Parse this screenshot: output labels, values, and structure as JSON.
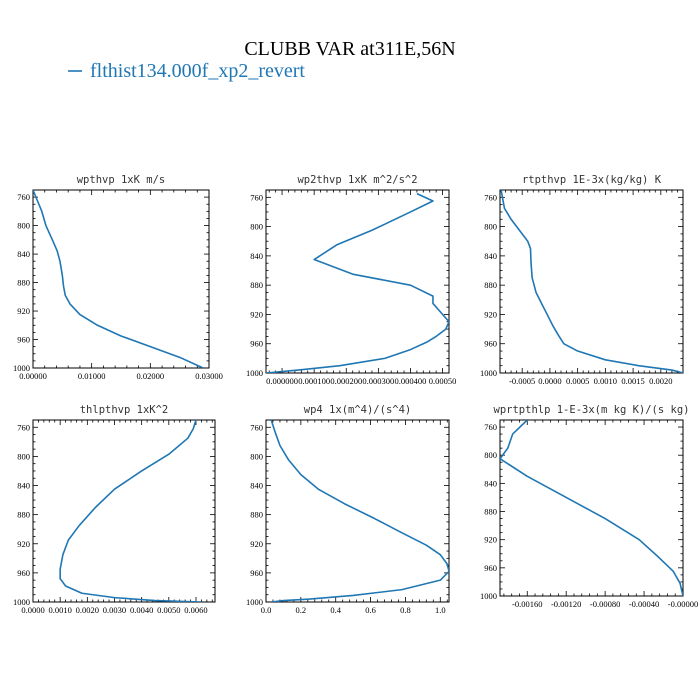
{
  "figure": {
    "title": "CLUBB VAR at311E,56N",
    "legend_label": "flthist134.000f_xp2_revert",
    "line_color": "#1f77b4"
  },
  "chart_data": [
    {
      "type": "line",
      "title": "wpthvp  1xK m/s",
      "xlim": [
        0,
        0.03
      ],
      "ylim": [
        1000,
        750
      ],
      "xticks": [
        0,
        0.01,
        0.02,
        0.03
      ],
      "xtick_labels": [
        "0.00000",
        "0.01000",
        "0.02000",
        "0.03000"
      ],
      "yticks": [
        760,
        800,
        840,
        880,
        920,
        960,
        1000
      ],
      "series": [
        {
          "x": [
            0.0,
            0.0005,
            0.0015,
            0.0022,
            0.0033,
            0.0041,
            0.0046,
            0.005,
            0.0052,
            0.0055,
            0.0063,
            0.008,
            0.011,
            0.015,
            0.02,
            0.025,
            0.029
          ],
          "y": [
            750,
            760,
            780,
            800,
            820,
            835,
            850,
            870,
            885,
            898,
            910,
            925,
            940,
            955,
            970,
            985,
            1000
          ]
        }
      ]
    },
    {
      "type": "line",
      "title": "wp2thvp  1xK m^2/s^2",
      "xlim": [
        -5e-05,
        0.00052
      ],
      "ylim": [
        1000,
        750
      ],
      "xticks": [
        0,
        0.0001,
        0.0002,
        0.0003,
        0.0004,
        0.0005
      ],
      "xtick_labels": [
        "0.000000",
        "0.000100",
        "0.000200",
        "0.000300",
        "0.000400",
        "0.00050"
      ],
      "yticks": [
        760,
        800,
        840,
        880,
        920,
        960,
        1000
      ],
      "series": [
        {
          "x": [
            0.00042,
            0.00047,
            0.0004,
            0.00028,
            0.00017,
            0.0001,
            0.00022,
            0.0004,
            0.00047,
            0.00047,
            0.00049,
            0.00052,
            0.00051,
            0.00048,
            0.00045,
            0.0004,
            0.00032,
            0.00018,
            5e-05,
            -5e-05
          ],
          "y": [
            755,
            765,
            780,
            805,
            825,
            845,
            865,
            880,
            895,
            905,
            915,
            930,
            940,
            950,
            958,
            968,
            980,
            990,
            996,
            1000
          ]
        }
      ]
    },
    {
      "type": "line",
      "title": "rtpthvp  1E-3x(kg/kg) K",
      "xlim": [
        -0.0009,
        0.0024
      ],
      "ylim": [
        1000,
        750
      ],
      "xticks": [
        -0.0005,
        0,
        0.0005,
        0.001,
        0.0015,
        0.002
      ],
      "xtick_labels": [
        "-0.0005",
        "0.0000",
        "0.0005",
        "0.0010",
        "0.0015",
        "0.0020"
      ],
      "yticks": [
        760,
        800,
        840,
        880,
        920,
        960,
        1000
      ],
      "series": [
        {
          "x": [
            -0.00088,
            -0.00082,
            -0.0007,
            -0.00055,
            -0.0004,
            -0.00035,
            -0.00034,
            -0.00032,
            -0.00025,
            -0.00015,
            -5e-05,
            5e-05,
            0.00015,
            0.00025,
            0.0005,
            0.001,
            0.0016,
            0.0022,
            0.0024
          ],
          "y": [
            750,
            775,
            790,
            805,
            820,
            830,
            850,
            870,
            890,
            905,
            920,
            935,
            948,
            960,
            970,
            982,
            990,
            996,
            1000
          ]
        }
      ]
    },
    {
      "type": "line",
      "title": "thlpthvp  1xK^2",
      "xlim": [
        0,
        0.0067
      ],
      "ylim": [
        1000,
        750
      ],
      "xticks": [
        0,
        0.001,
        0.002,
        0.003,
        0.004,
        0.005,
        0.006
      ],
      "xtick_labels": [
        "0.0000",
        "0.0010",
        "0.0020",
        "0.0030",
        "0.0040",
        "0.0050",
        "0.0060"
      ],
      "yticks": [
        760,
        800,
        840,
        880,
        920,
        960,
        1000
      ],
      "series": [
        {
          "x": [
            0.006,
            0.0059,
            0.0057,
            0.005,
            0.004,
            0.003,
            0.0023,
            0.0017,
            0.0013,
            0.0011,
            0.001,
            0.001,
            0.0012,
            0.0018,
            0.003,
            0.0045,
            0.0062
          ],
          "y": [
            750,
            762,
            775,
            797,
            820,
            845,
            870,
            895,
            915,
            935,
            955,
            968,
            978,
            988,
            994,
            998,
            1000
          ]
        }
      ]
    },
    {
      "type": "line",
      "title": "wp4  1x(m^4)/(s^4)",
      "xlim": [
        0,
        1.05
      ],
      "ylim": [
        1000,
        750
      ],
      "xticks": [
        0,
        0.2,
        0.4,
        0.6,
        0.8,
        1.0
      ],
      "xtick_labels": [
        "0.0",
        "0.2",
        "0.4",
        "0.6",
        "0.8",
        "1.0"
      ],
      "yticks": [
        760,
        800,
        840,
        880,
        920,
        960,
        1000
      ],
      "series": [
        {
          "x": [
            0.03,
            0.05,
            0.08,
            0.13,
            0.2,
            0.3,
            0.45,
            0.62,
            0.78,
            0.92,
            1.0,
            1.04,
            1.05,
            1.0,
            0.78,
            0.5,
            0.25,
            0.1,
            0.03
          ],
          "y": [
            750,
            765,
            785,
            805,
            825,
            845,
            865,
            885,
            905,
            922,
            935,
            948,
            958,
            970,
            983,
            991,
            996,
            998,
            1000
          ]
        }
      ]
    },
    {
      "type": "line",
      "title": "wprtpthlp  1-E-3x(m kg K)/(s kg)",
      "xlim": [
        -0.00188,
        0.0
      ],
      "ylim": [
        1000,
        750
      ],
      "xticks": [
        -0.0016,
        -0.0012,
        -0.0008,
        -0.0004,
        0.0
      ],
      "xtick_labels": [
        "-0.00160",
        "-0.00120",
        "-0.00080",
        "-0.00040",
        "-0.00000"
      ],
      "yticks": [
        760,
        800,
        840,
        880,
        920,
        960,
        1000
      ],
      "series": [
        {
          "x": [
            -0.0016,
            -0.00175,
            -0.0018,
            -0.00188,
            -0.0016,
            -0.0012,
            -0.0008,
            -0.00045,
            -0.00025,
            -0.0001,
            -3e-05,
            0.0
          ],
          "y": [
            750,
            770,
            790,
            805,
            830,
            860,
            890,
            920,
            945,
            965,
            982,
            1000
          ]
        }
      ]
    }
  ]
}
